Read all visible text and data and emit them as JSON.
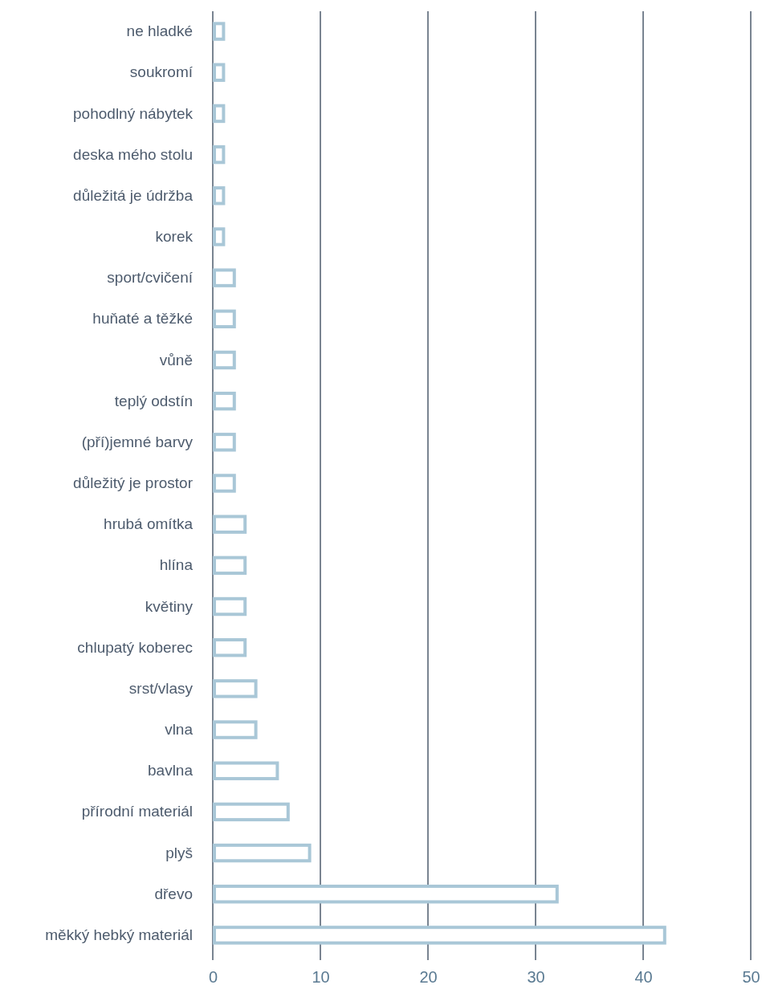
{
  "chart_data": {
    "type": "bar",
    "orientation": "horizontal",
    "categories": [
      "ne hladké",
      "soukromí",
      "pohodlný nábytek",
      "deska mého stolu",
      "důležitá je údržba",
      "korek",
      "sport/cvičení",
      "huňaté a těžké",
      "vůně",
      "teplý odstín",
      "(pří)jemné barvy",
      "důležitý je prostor",
      "hrubá omítka",
      "hlína",
      "květiny",
      "chlupatý koberec",
      "srst/vlasy",
      "vlna",
      "bavlna",
      "přírodní materiál",
      "plyš",
      "dřevo",
      "měkký hebký materiál"
    ],
    "values": [
      1,
      1,
      1,
      1,
      1,
      1,
      2,
      2,
      2,
      2,
      2,
      2,
      3,
      3,
      3,
      3,
      4,
      4,
      6,
      7,
      9,
      32,
      42
    ],
    "color": "#a9c7d7",
    "xlim": [
      0,
      50
    ],
    "xticks": [
      0,
      10,
      20,
      30,
      40,
      50
    ],
    "grid": "x"
  }
}
